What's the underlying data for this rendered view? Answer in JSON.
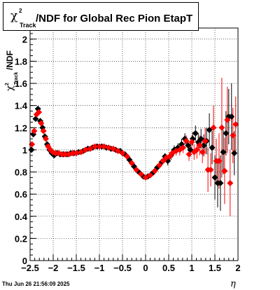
{
  "title": {
    "chi": "χ",
    "sup": "2",
    "sub": "Track",
    "main": "/NDF for Global Rec Pion EtapT"
  },
  "xlabel": "η",
  "ylabel_parts": {
    "chi": "χ",
    "sup": "2",
    "sub": "Track",
    "main": "/NDF"
  },
  "datestamp": "Thu Jun 26 21:56:09 2025",
  "chart_data": {
    "type": "scatter",
    "xlim": [
      -2.5,
      2.0
    ],
    "ylim": [
      0.0,
      2.1
    ],
    "xticks": [
      -2.5,
      -2,
      -1.5,
      -1,
      -0.5,
      0,
      0.5,
      1,
      1.5,
      2
    ],
    "xtick_labels": [
      "−2.5",
      "−2",
      "−1.5",
      "−1",
      "−0.5",
      "0",
      "0.5",
      "1",
      "1.5",
      "2"
    ],
    "yticks": [
      0,
      0.2,
      0.4,
      0.6,
      0.8,
      1,
      1.2,
      1.4,
      1.6,
      1.8,
      2
    ],
    "ytick_labels": [
      "0",
      "0.2",
      "0.4",
      "0.6",
      "0.8",
      "1",
      "1.2",
      "1.4",
      "1.6",
      "1.8",
      "2"
    ],
    "grid": true,
    "colors": {
      "series_black": "#000000",
      "series_red": "#ff0000"
    },
    "series": [
      {
        "color": "#000000",
        "marker": "diamond",
        "points": [
          {
            "x": -2.47,
            "y": 1.0,
            "err": 0.02
          },
          {
            "x": -2.43,
            "y": 1.14,
            "err": 0.02
          },
          {
            "x": -2.38,
            "y": 1.28,
            "err": 0.02
          },
          {
            "x": -2.33,
            "y": 1.37,
            "err": 0.02
          },
          {
            "x": -2.28,
            "y": 1.26,
            "err": 0.02
          },
          {
            "x": -2.23,
            "y": 1.2,
            "err": 0.02
          },
          {
            "x": -2.18,
            "y": 1.12,
            "err": 0.02
          },
          {
            "x": -2.13,
            "y": 1.05,
            "err": 0.02
          },
          {
            "x": -2.08,
            "y": 1.0,
            "err": 0.02
          },
          {
            "x": -2.03,
            "y": 0.97,
            "err": 0.02
          },
          {
            "x": -1.98,
            "y": 0.95,
            "err": 0.02
          },
          {
            "x": -1.92,
            "y": 0.97,
            "err": 0.02
          },
          {
            "x": -1.85,
            "y": 0.96,
            "err": 0.02
          },
          {
            "x": -1.78,
            "y": 0.96,
            "err": 0.02
          },
          {
            "x": -1.7,
            "y": 0.96,
            "err": 0.02
          },
          {
            "x": -1.62,
            "y": 0.97,
            "err": 0.02
          },
          {
            "x": -1.55,
            "y": 0.97,
            "err": 0.02
          },
          {
            "x": -1.45,
            "y": 0.98,
            "err": 0.02
          },
          {
            "x": -1.35,
            "y": 0.99,
            "err": 0.02
          },
          {
            "x": -1.25,
            "y": 1.01,
            "err": 0.02
          },
          {
            "x": -1.15,
            "y": 1.02,
            "err": 0.02
          },
          {
            "x": -1.05,
            "y": 1.03,
            "err": 0.02
          },
          {
            "x": -0.95,
            "y": 1.03,
            "err": 0.02
          },
          {
            "x": -0.85,
            "y": 1.02,
            "err": 0.02
          },
          {
            "x": -0.75,
            "y": 1.01,
            "err": 0.02
          },
          {
            "x": -0.65,
            "y": 1.0,
            "err": 0.02
          },
          {
            "x": -0.55,
            "y": 0.99,
            "err": 0.02
          },
          {
            "x": -0.45,
            "y": 0.96,
            "err": 0.02
          },
          {
            "x": -0.35,
            "y": 0.91,
            "err": 0.02
          },
          {
            "x": -0.25,
            "y": 0.85,
            "err": 0.02
          },
          {
            "x": -0.15,
            "y": 0.8,
            "err": 0.02
          },
          {
            "x": -0.05,
            "y": 0.76,
            "err": 0.02
          },
          {
            "x": 0.05,
            "y": 0.76,
            "err": 0.02
          },
          {
            "x": 0.15,
            "y": 0.79,
            "err": 0.02
          },
          {
            "x": 0.25,
            "y": 0.84,
            "err": 0.03
          },
          {
            "x": 0.35,
            "y": 0.89,
            "err": 0.03
          },
          {
            "x": 0.42,
            "y": 0.94,
            "err": 0.03
          },
          {
            "x": 0.48,
            "y": 0.9,
            "err": 0.04
          },
          {
            "x": 0.55,
            "y": 0.95,
            "err": 0.04
          },
          {
            "x": 0.62,
            "y": 1.0,
            "err": 0.04
          },
          {
            "x": 0.7,
            "y": 1.02,
            "err": 0.04
          },
          {
            "x": 0.78,
            "y": 1.05,
            "err": 0.05
          },
          {
            "x": 0.85,
            "y": 1.1,
            "err": 0.05
          },
          {
            "x": 0.92,
            "y": 1.04,
            "err": 0.05
          },
          {
            "x": 0.97,
            "y": 1.0,
            "err": 0.06
          },
          {
            "x": 1.02,
            "y": 1.1,
            "err": 0.06
          },
          {
            "x": 1.08,
            "y": 1.15,
            "err": 0.07
          },
          {
            "x": 1.14,
            "y": 1.07,
            "err": 0.08
          },
          {
            "x": 1.2,
            "y": 1.1,
            "err": 0.09
          },
          {
            "x": 1.26,
            "y": 1.04,
            "err": 0.1
          },
          {
            "x": 1.32,
            "y": 1.08,
            "err": 0.12
          },
          {
            "x": 1.38,
            "y": 1.18,
            "err": 0.15
          },
          {
            "x": 1.44,
            "y": 1.02,
            "err": 0.15
          },
          {
            "x": 1.5,
            "y": 0.75,
            "err": 0.2
          },
          {
            "x": 1.56,
            "y": 0.7,
            "err": 0.22
          },
          {
            "x": 1.62,
            "y": 0.7,
            "err": 0.25
          },
          {
            "x": 1.68,
            "y": 0.98,
            "err": 0.2
          },
          {
            "x": 1.74,
            "y": 1.15,
            "err": 0.2
          },
          {
            "x": 1.8,
            "y": 1.3,
            "err": 0.25
          },
          {
            "x": 1.86,
            "y": 1.3,
            "err": 0.3
          },
          {
            "x": 1.92,
            "y": 0.97,
            "err": 0.2
          }
        ]
      },
      {
        "color": "#ff0000",
        "marker": "diamond",
        "points": [
          {
            "x": -2.46,
            "y": 1.05,
            "err": 0.02
          },
          {
            "x": -2.41,
            "y": 1.17,
            "err": 0.02
          },
          {
            "x": -2.36,
            "y": 1.32,
            "err": 0.02
          },
          {
            "x": -2.31,
            "y": 1.34,
            "err": 0.02
          },
          {
            "x": -2.26,
            "y": 1.24,
            "err": 0.02
          },
          {
            "x": -2.21,
            "y": 1.17,
            "err": 0.02
          },
          {
            "x": -2.16,
            "y": 1.1,
            "err": 0.02
          },
          {
            "x": -2.11,
            "y": 1.03,
            "err": 0.02
          },
          {
            "x": -2.06,
            "y": 1.0,
            "err": 0.02
          },
          {
            "x": -2.01,
            "y": 0.98,
            "err": 0.02
          },
          {
            "x": -1.95,
            "y": 0.97,
            "err": 0.02
          },
          {
            "x": -1.88,
            "y": 0.97,
            "err": 0.02
          },
          {
            "x": -1.81,
            "y": 0.96,
            "err": 0.02
          },
          {
            "x": -1.74,
            "y": 0.96,
            "err": 0.02
          },
          {
            "x": -1.66,
            "y": 0.96,
            "err": 0.02
          },
          {
            "x": -1.58,
            "y": 0.97,
            "err": 0.02
          },
          {
            "x": -1.5,
            "y": 0.97,
            "err": 0.02
          },
          {
            "x": -1.4,
            "y": 0.98,
            "err": 0.02
          },
          {
            "x": -1.3,
            "y": 1.0,
            "err": 0.02
          },
          {
            "x": -1.2,
            "y": 1.01,
            "err": 0.02
          },
          {
            "x": -1.1,
            "y": 1.03,
            "err": 0.02
          },
          {
            "x": -1.0,
            "y": 1.03,
            "err": 0.02
          },
          {
            "x": -0.9,
            "y": 1.03,
            "err": 0.02
          },
          {
            "x": -0.8,
            "y": 1.02,
            "err": 0.02
          },
          {
            "x": -0.7,
            "y": 1.01,
            "err": 0.02
          },
          {
            "x": -0.6,
            "y": 0.99,
            "err": 0.02
          },
          {
            "x": -0.5,
            "y": 0.97,
            "err": 0.02
          },
          {
            "x": -0.4,
            "y": 0.94,
            "err": 0.02
          },
          {
            "x": -0.3,
            "y": 0.88,
            "err": 0.02
          },
          {
            "x": -0.2,
            "y": 0.82,
            "err": 0.02
          },
          {
            "x": -0.1,
            "y": 0.78,
            "err": 0.02
          },
          {
            "x": 0.0,
            "y": 0.75,
            "err": 0.02
          },
          {
            "x": 0.1,
            "y": 0.77,
            "err": 0.02
          },
          {
            "x": 0.2,
            "y": 0.81,
            "err": 0.03
          },
          {
            "x": 0.3,
            "y": 0.86,
            "err": 0.03
          },
          {
            "x": 0.38,
            "y": 0.9,
            "err": 0.03
          },
          {
            "x": 0.45,
            "y": 0.93,
            "err": 0.03
          },
          {
            "x": 0.52,
            "y": 0.94,
            "err": 0.04
          },
          {
            "x": 0.58,
            "y": 0.97,
            "err": 0.04
          },
          {
            "x": 0.66,
            "y": 0.99,
            "err": 0.04
          },
          {
            "x": 0.74,
            "y": 1.0,
            "err": 0.05
          },
          {
            "x": 0.81,
            "y": 1.02,
            "err": 0.05
          },
          {
            "x": 0.88,
            "y": 1.08,
            "err": 0.05
          },
          {
            "x": 0.94,
            "y": 0.96,
            "err": 0.06
          },
          {
            "x": 1.0,
            "y": 1.07,
            "err": 0.06
          },
          {
            "x": 1.05,
            "y": 0.98,
            "err": 0.07
          },
          {
            "x": 1.11,
            "y": 1.0,
            "err": 0.08
          },
          {
            "x": 1.17,
            "y": 1.04,
            "err": 0.09
          },
          {
            "x": 1.23,
            "y": 0.98,
            "err": 0.1
          },
          {
            "x": 1.29,
            "y": 1.08,
            "err": 0.12
          },
          {
            "x": 1.35,
            "y": 0.82,
            "err": 0.2
          },
          {
            "x": 1.41,
            "y": 0.82,
            "err": 0.15
          },
          {
            "x": 1.47,
            "y": 1.2,
            "err": 0.2
          },
          {
            "x": 1.53,
            "y": 0.9,
            "err": 0.2
          },
          {
            "x": 1.59,
            "y": 0.9,
            "err": 0.25
          },
          {
            "x": 1.65,
            "y": 1.2,
            "err": 0.45
          },
          {
            "x": 1.71,
            "y": 0.81,
            "err": 0.3
          },
          {
            "x": 1.77,
            "y": 1.27,
            "err": 0.3
          },
          {
            "x": 1.83,
            "y": 0.7,
            "err": 0.3
          },
          {
            "x": 1.89,
            "y": 1.13,
            "err": 0.25
          },
          {
            "x": 1.95,
            "y": 1.23,
            "err": 0.25
          }
        ]
      }
    ]
  }
}
